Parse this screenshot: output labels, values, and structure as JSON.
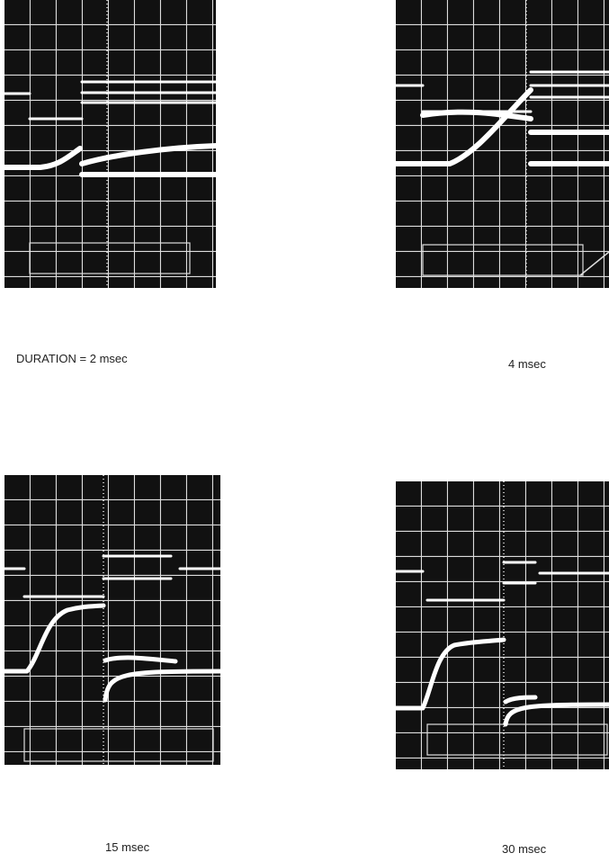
{
  "panels": [
    {
      "caption": "DURATION = 2 msec"
    },
    {
      "caption": "4 msec"
    },
    {
      "caption": "15 msec"
    },
    {
      "caption": "30 msec"
    }
  ]
}
